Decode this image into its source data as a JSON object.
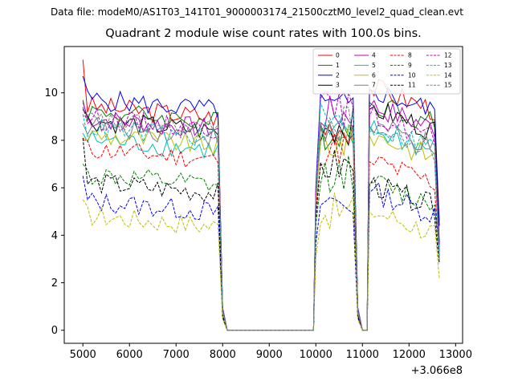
{
  "figure": {
    "suptitle": "Data file: modeM0/AS1T03_141T01_9000003174_21500cztM0_level2_quad_clean.evt",
    "title": "Quadrant 2 module wise count rates with 100.0s bins."
  },
  "chart_data": {
    "type": "line",
    "title": "Quadrant 2 module wise count rates with 100.0s bins.",
    "xlabel": "",
    "ylabel": "",
    "x_offset_label": "+3.066e8",
    "xlim": [
      4600,
      13150
    ],
    "ylim": [
      -0.55,
      11.95
    ],
    "xticks": [
      5000,
      6000,
      7000,
      8000,
      9000,
      10000,
      11000,
      12000,
      13000
    ],
    "yticks": [
      0,
      2,
      4,
      6,
      8,
      10
    ],
    "grid": false,
    "legend": {
      "location": "top-right",
      "columns": 4
    },
    "segment_gaps": [
      [
        8100,
        9950
      ],
      [
        11100,
        11150
      ]
    ],
    "series": [
      {
        "name": "0",
        "color": "#ff0000",
        "dashed": false,
        "level": 9.2,
        "first": 11.4,
        "rise": 8.6,
        "top2": 10.2,
        "last": 4.6
      },
      {
        "name": "1",
        "color": "#008000",
        "dashed": false,
        "level": 9.0,
        "first": 9.7,
        "rise": 8.4,
        "top2": 9.6,
        "last": 3.7
      },
      {
        "name": "2",
        "color": "#0000ff",
        "dashed": false,
        "level": 9.5,
        "first": 10.7,
        "rise": 9.3,
        "top2": 10.1,
        "last": 4.4
      },
      {
        "name": "3",
        "color": "#000000",
        "dashed": false,
        "level": 8.6,
        "first": 9.3,
        "rise": 8.6,
        "top2": 9.3,
        "last": 3.6
      },
      {
        "name": "4",
        "color": "#bf00bf",
        "dashed": false,
        "level": 8.7,
        "first": 9.6,
        "rise": 9.1,
        "top2": 9.4,
        "last": 3.4
      },
      {
        "name": "5",
        "color": "#00bfbf",
        "dashed": false,
        "level": 7.8,
        "first": 8.3,
        "rise": 8.1,
        "top2": 8.4,
        "last": 2.9
      },
      {
        "name": "6",
        "color": "#bfbf00",
        "dashed": false,
        "level": 8.0,
        "first": 8.1,
        "rise": 7.9,
        "top2": 8.2,
        "last": 3.0
      },
      {
        "name": "7",
        "color": "#808080",
        "dashed": false,
        "level": 8.4,
        "first": 8.7,
        "rise": 8.2,
        "top2": 8.6,
        "last": 3.1
      },
      {
        "name": "8",
        "color": "#ff0000",
        "dashed": true,
        "level": 7.4,
        "first": 8.0,
        "rise": 7.7,
        "top2": 7.1,
        "last": 3.2
      },
      {
        "name": "9",
        "color": "#008000",
        "dashed": true,
        "level": 6.3,
        "first": 7.0,
        "rise": 6.6,
        "top2": 6.2,
        "last": 3.0
      },
      {
        "name": "10",
        "color": "#0000ff",
        "dashed": true,
        "level": 5.2,
        "first": 6.5,
        "rise": 5.4,
        "top2": 5.8,
        "last": 3.7
      },
      {
        "name": "11",
        "color": "#000000",
        "dashed": true,
        "level": 6.0,
        "first": 8.1,
        "rise": 6.9,
        "top2": 6.1,
        "last": 2.8
      },
      {
        "name": "12",
        "color": "#bf00bf",
        "dashed": true,
        "level": 8.7,
        "first": 9.4,
        "rise": 9.3,
        "top2": 9.0,
        "last": 3.3
      },
      {
        "name": "13",
        "color": "#00bfbf",
        "dashed": true,
        "level": 8.3,
        "first": 9.1,
        "rise": 8.8,
        "top2": 8.6,
        "last": 3.1
      },
      {
        "name": "14",
        "color": "#bfbf00",
        "dashed": true,
        "level": 4.6,
        "first": 5.5,
        "rise": 5.0,
        "top2": 5.0,
        "last": 2.2
      },
      {
        "name": "15",
        "color": "#808080",
        "dashed": true,
        "level": 8.6,
        "first": 9.0,
        "rise": 8.7,
        "top2": 8.4,
        "last": 3.0
      }
    ]
  }
}
